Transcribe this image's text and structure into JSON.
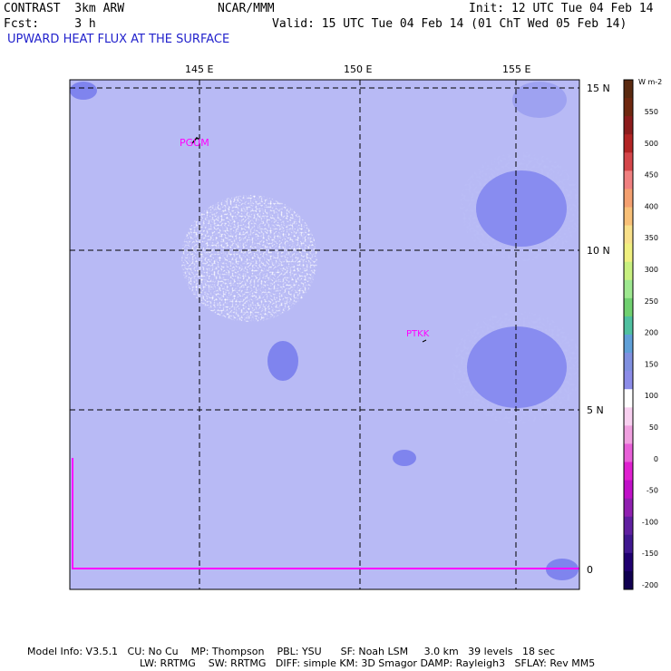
{
  "header": {
    "model": "CONTRAST  3km ARW",
    "org": "NCAR/MMM",
    "init": "Init: 12 UTC Tue 04 Feb 14",
    "fcst": "Fcst:     3 h",
    "valid": "Valid: 15 UTC Tue 04 Feb 14 (01 ChT Wed 05 Feb 14)",
    "field": "UPWARD HEAT FLUX AT THE SURFACE"
  },
  "map": {
    "lon_labels": [
      "145 E",
      "150 E",
      "155 E"
    ],
    "lat_labels": [
      "15 N",
      "10 N",
      "5 N",
      "0"
    ],
    "stations": [
      "PGUM",
      "PTKK"
    ],
    "field_color": "#b8baf5",
    "patch_color": "#7f84ee",
    "boundary_color": "#ff00ff"
  },
  "colorbar": {
    "units": "W m-2",
    "ticks": [
      "550",
      "500",
      "450",
      "400",
      "350",
      "300",
      "250",
      "200",
      "150",
      "100",
      "50",
      "0",
      "-50",
      "-100",
      "-150",
      "-200"
    ],
    "colors": [
      "#5a2a10",
      "#6f2810",
      "#8c1c1c",
      "#b22424",
      "#d4464a",
      "#f08080",
      "#f4a070",
      "#f8c078",
      "#f8e08a",
      "#f0f080",
      "#c8f080",
      "#9ee890",
      "#70d070",
      "#50c0a0",
      "#60a0d8",
      "#8090e0",
      "#8c8ce8",
      "#ffffff",
      "#f8d0f0",
      "#f0a0e0",
      "#e860d8",
      "#e020d0",
      "#c010c8",
      "#9020b0",
      "#6020a0",
      "#401890",
      "#200070",
      "#100050"
    ]
  },
  "footer": {
    "line1": "Model Info: V3.5.1   CU: No Cu    MP: Thompson    PBL: YSU      SF: Noah LSM     3.0 km   39 levels   18 sec",
    "line2": "LW: RRTMG    SW: RRTMG   DIFF: simple KM: 3D Smagor DAMP: Rayleigh3   SFLAY: Rev MM5"
  }
}
